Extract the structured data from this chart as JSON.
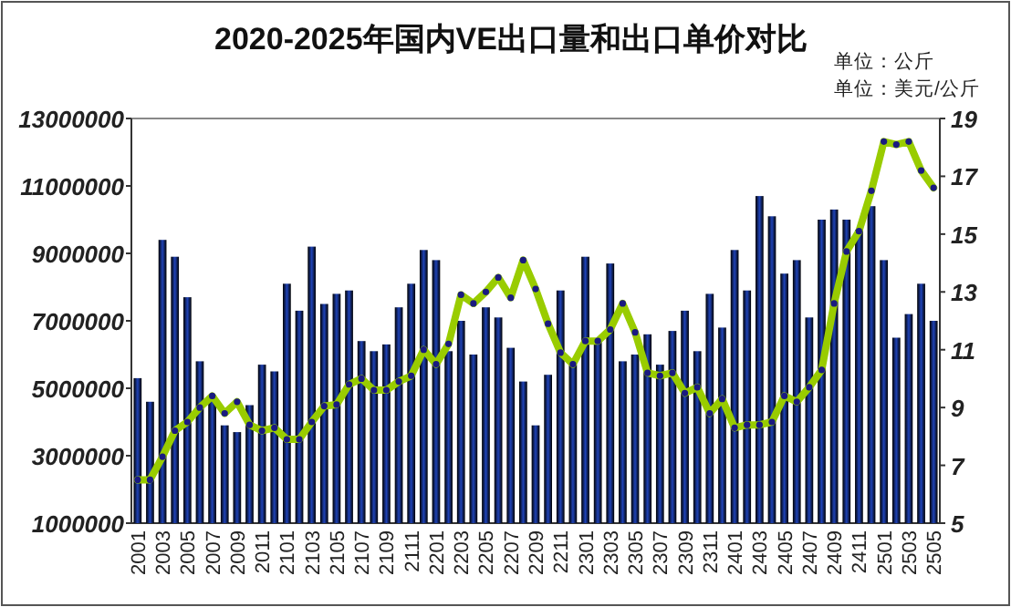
{
  "chart_data": {
    "type": "bar",
    "title": "2020-2025年国内VE出口量和出口单价对比",
    "annotations": [
      "单位：公斤",
      "单位：美元/公斤"
    ],
    "categories": [
      "2001",
      null,
      "2003",
      null,
      "2005",
      null,
      "2007",
      null,
      "2009",
      null,
      "2011",
      null,
      "2101",
      null,
      "2103",
      null,
      "2105",
      null,
      "2107",
      null,
      "2109",
      null,
      "2111",
      null,
      "2201",
      null,
      "2203",
      null,
      "2205",
      null,
      "2207",
      null,
      "2209",
      null,
      "2211",
      null,
      "2301",
      null,
      "2303",
      null,
      "2305",
      null,
      "2307",
      null,
      "2309",
      null,
      "2311",
      null,
      "2401",
      null,
      "2403",
      null,
      "2405",
      null,
      "2407",
      null,
      "2409",
      null,
      "2411",
      null,
      "2501",
      null,
      "2503",
      null,
      "2505"
    ],
    "series": [
      {
        "type": "bar",
        "color": "#1f43b8",
        "values": [
          5300000,
          4600000,
          9400000,
          8900000,
          7700000,
          5800000,
          4800000,
          3900000,
          3700000,
          4500000,
          5700000,
          5500000,
          8100000,
          7300000,
          9200000,
          7500000,
          7800000,
          7900000,
          6400000,
          6100000,
          6300000,
          7400000,
          8100000,
          9100000,
          8800000,
          6100000,
          7000000,
          6000000,
          7400000,
          7100000,
          6200000,
          5200000,
          3900000,
          5400000,
          7900000,
          5700000,
          8900000,
          6400000,
          8700000,
          5800000,
          6000000,
          6600000,
          5700000,
          6700000,
          7300000,
          6100000,
          7800000,
          6800000,
          9100000,
          7900000,
          10700000,
          10100000,
          8400000,
          8800000,
          7100000,
          10000000,
          10300000,
          10000000,
          9700000,
          10400000,
          8800000,
          6500000,
          7200000,
          8100000,
          7000000
        ]
      },
      {
        "type": "line",
        "axis": "y2",
        "color": "#99cc00",
        "values": [
          6.5,
          6.5,
          7.3,
          8.2,
          8.5,
          9.0,
          9.4,
          8.8,
          9.2,
          8.4,
          8.2,
          8.3,
          7.9,
          7.9,
          8.5,
          9.05,
          9.1,
          9.8,
          10.0,
          9.6,
          9.6,
          9.9,
          10.1,
          11.0,
          10.5,
          11.2,
          12.9,
          12.6,
          13.0,
          13.5,
          12.8,
          14.1,
          13.1,
          11.9,
          10.9,
          10.5,
          11.3,
          11.3,
          11.7,
          12.6,
          11.6,
          10.2,
          10.1,
          10.2,
          9.5,
          9.7,
          8.8,
          9.3,
          8.3,
          8.4,
          8.4,
          8.5,
          9.4,
          9.2,
          9.7,
          10.3,
          12.6,
          14.4,
          15.1,
          16.5,
          18.2,
          18.1,
          18.2,
          17.2,
          16.6
        ]
      }
    ],
    "ylim": [
      1000000,
      13000000
    ],
    "yticks": [
      1000000,
      3000000,
      5000000,
      7000000,
      9000000,
      11000000,
      13000000
    ],
    "y2lim": [
      5,
      19
    ],
    "y2ticks": [
      5,
      7,
      9,
      11,
      13,
      15,
      17,
      19
    ],
    "marker": "circle",
    "grid": false
  }
}
